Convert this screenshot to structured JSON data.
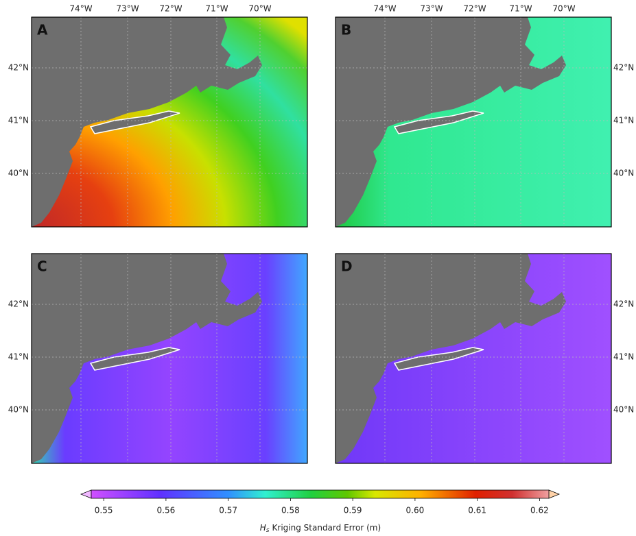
{
  "panels": [
    {
      "label": "A"
    },
    {
      "label": "B"
    },
    {
      "label": "C"
    },
    {
      "label": "D"
    }
  ],
  "longitude_labels": [
    "74°W",
    "73°W",
    "72°W",
    "71°W",
    "70°W"
  ],
  "latitude_labels": [
    "42°N",
    "41°N",
    "40°N"
  ],
  "colorbar": {
    "lim": [
      0.548,
      0.6215
    ],
    "ticks": [
      0.55,
      0.56,
      0.57,
      0.58,
      0.59,
      {
        "value": 0.6,
        "label": "0.60"
      },
      0.61,
      0.62
    ],
    "title": {
      "symbol": "H",
      "subscript": "s",
      "text": "Kriging Standard Error (m)"
    }
  }
}
